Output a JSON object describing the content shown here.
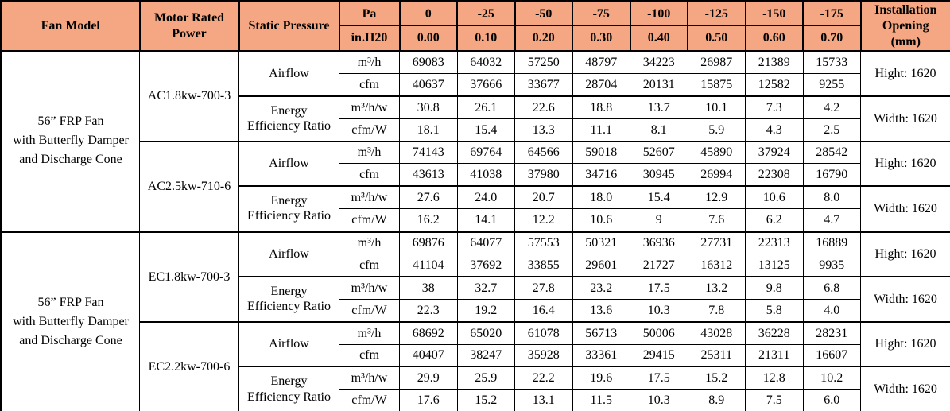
{
  "colors": {
    "header_bg": "#F4A782",
    "border": "#000000",
    "header_text": "#000000",
    "body_text": "#000000",
    "body_bg": "#FFFFFF"
  },
  "table": {
    "header": {
      "fan_model": "Fan Model",
      "motor_rated_power": "Motor Rated Power",
      "static_pressure": "Static Pressure",
      "pressure_unit_pa": "Pa",
      "pressure_unit_inh2o": "in.H20",
      "pa_values": [
        "0",
        "-25",
        "-50",
        "-75",
        "-100",
        "-125",
        "-150",
        "-175"
      ],
      "inh2o_values": [
        "0.00",
        "0.10",
        "0.20",
        "0.30",
        "0.40",
        "0.50",
        "0.60",
        "0.70"
      ],
      "installation_lines": [
        "Installation",
        "Opening",
        "(mm)"
      ]
    },
    "groups": [
      {
        "fan_model_lines": [
          "56” FRP Fan",
          "with Butterfly Damper",
          "and Discharge Cone"
        ],
        "motors": [
          {
            "model": "AC1.8kw-700-3",
            "sections": [
              {
                "label_lines": [
                  "Airflow"
                ],
                "installation": "Hight: 1620",
                "rows": [
                  {
                    "unit": "m³/h",
                    "values": [
                      "69083",
                      "64032",
                      "57250",
                      "48797",
                      "34223",
                      "26987",
                      "21389",
                      "15733"
                    ]
                  },
                  {
                    "unit": "cfm",
                    "values": [
                      "40637",
                      "37666",
                      "33677",
                      "28704",
                      "20131",
                      "15875",
                      "12582",
                      "9255"
                    ]
                  }
                ]
              },
              {
                "label_lines": [
                  "Energy",
                  "Efficiency Ratio"
                ],
                "installation": "Width: 1620",
                "rows": [
                  {
                    "unit": "m³/h/w",
                    "values": [
                      "30.8",
                      "26.1",
                      "22.6",
                      "18.8",
                      "13.7",
                      "10.1",
                      "7.3",
                      "4.2"
                    ]
                  },
                  {
                    "unit": "cfm/W",
                    "values": [
                      "18.1",
                      "15.4",
                      "13.3",
                      "11.1",
                      "8.1",
                      "5.9",
                      "4.3",
                      "2.5"
                    ]
                  }
                ]
              }
            ]
          },
          {
            "model": "AC2.5kw-710-6",
            "sections": [
              {
                "label_lines": [
                  "Airflow"
                ],
                "installation": "Hight: 1620",
                "rows": [
                  {
                    "unit": "m³/h",
                    "values": [
                      "74143",
                      "69764",
                      "64566",
                      "59018",
                      "52607",
                      "45890",
                      "37924",
                      "28542"
                    ]
                  },
                  {
                    "unit": "cfm",
                    "values": [
                      "43613",
                      "41038",
                      "37980",
                      "34716",
                      "30945",
                      "26994",
                      "22308",
                      "16790"
                    ]
                  }
                ]
              },
              {
                "label_lines": [
                  "Energy",
                  "Efficiency Ratio"
                ],
                "installation": "Width: 1620",
                "rows": [
                  {
                    "unit": "m³/h/w",
                    "values": [
                      "27.6",
                      "24.0",
                      "20.7",
                      "18.0",
                      "15.4",
                      "12.9",
                      "10.6",
                      "8.0"
                    ]
                  },
                  {
                    "unit": "cfm/W",
                    "values": [
                      "16.2",
                      "14.1",
                      "12.2",
                      "10.6",
                      "9",
                      "7.6",
                      "6.2",
                      "4.7"
                    ]
                  }
                ]
              }
            ]
          }
        ]
      },
      {
        "fan_model_lines": [
          "56” FRP Fan",
          "with Butterfly Damper",
          "and Discharge Cone"
        ],
        "motors": [
          {
            "model": "EC1.8kw-700-3",
            "sections": [
              {
                "label_lines": [
                  "Airflow"
                ],
                "installation": "Hight: 1620",
                "rows": [
                  {
                    "unit": "m³/h",
                    "values": [
                      "69876",
                      "64077",
                      "57553",
                      "50321",
                      "36936",
                      "27731",
                      "22313",
                      "16889"
                    ]
                  },
                  {
                    "unit": "cfm",
                    "values": [
                      "41104",
                      "37692",
                      "33855",
                      "29601",
                      "21727",
                      "16312",
                      "13125",
                      "9935"
                    ]
                  }
                ]
              },
              {
                "label_lines": [
                  "Energy",
                  "Efficiency Ratio"
                ],
                "installation": "Width: 1620",
                "rows": [
                  {
                    "unit": "m³/h/w",
                    "values": [
                      "38",
                      "32.7",
                      "27.8",
                      "23.2",
                      "17.5",
                      "13.2",
                      "9.8",
                      "6.8"
                    ]
                  },
                  {
                    "unit": "cfm/W",
                    "values": [
                      "22.3",
                      "19.2",
                      "16.4",
                      "13.6",
                      "10.3",
                      "7.8",
                      "5.8",
                      "4.0"
                    ]
                  }
                ]
              }
            ]
          },
          {
            "model": "EC2.2kw-700-6",
            "sections": [
              {
                "label_lines": [
                  "Airflow"
                ],
                "installation": "Hight: 1620",
                "rows": [
                  {
                    "unit": "m³/h",
                    "values": [
                      "68692",
                      "65020",
                      "61078",
                      "56713",
                      "50006",
                      "43028",
                      "36228",
                      "28231"
                    ]
                  },
                  {
                    "unit": "cfm",
                    "values": [
                      "40407",
                      "38247",
                      "35928",
                      "33361",
                      "29415",
                      "25311",
                      "21311",
                      "16607"
                    ]
                  }
                ]
              },
              {
                "label_lines": [
                  "Energy",
                  "Efficiency Ratio"
                ],
                "installation": "Width: 1620",
                "rows": [
                  {
                    "unit": "m³/h/w",
                    "values": [
                      "29.9",
                      "25.9",
                      "22.2",
                      "19.6",
                      "17.5",
                      "15.2",
                      "12.8",
                      "10.2"
                    ]
                  },
                  {
                    "unit": "cfm/W",
                    "values": [
                      "17.6",
                      "15.2",
                      "13.1",
                      "11.5",
                      "10.3",
                      "8.9",
                      "7.5",
                      "6.0"
                    ]
                  }
                ]
              }
            ]
          }
        ]
      }
    ]
  }
}
